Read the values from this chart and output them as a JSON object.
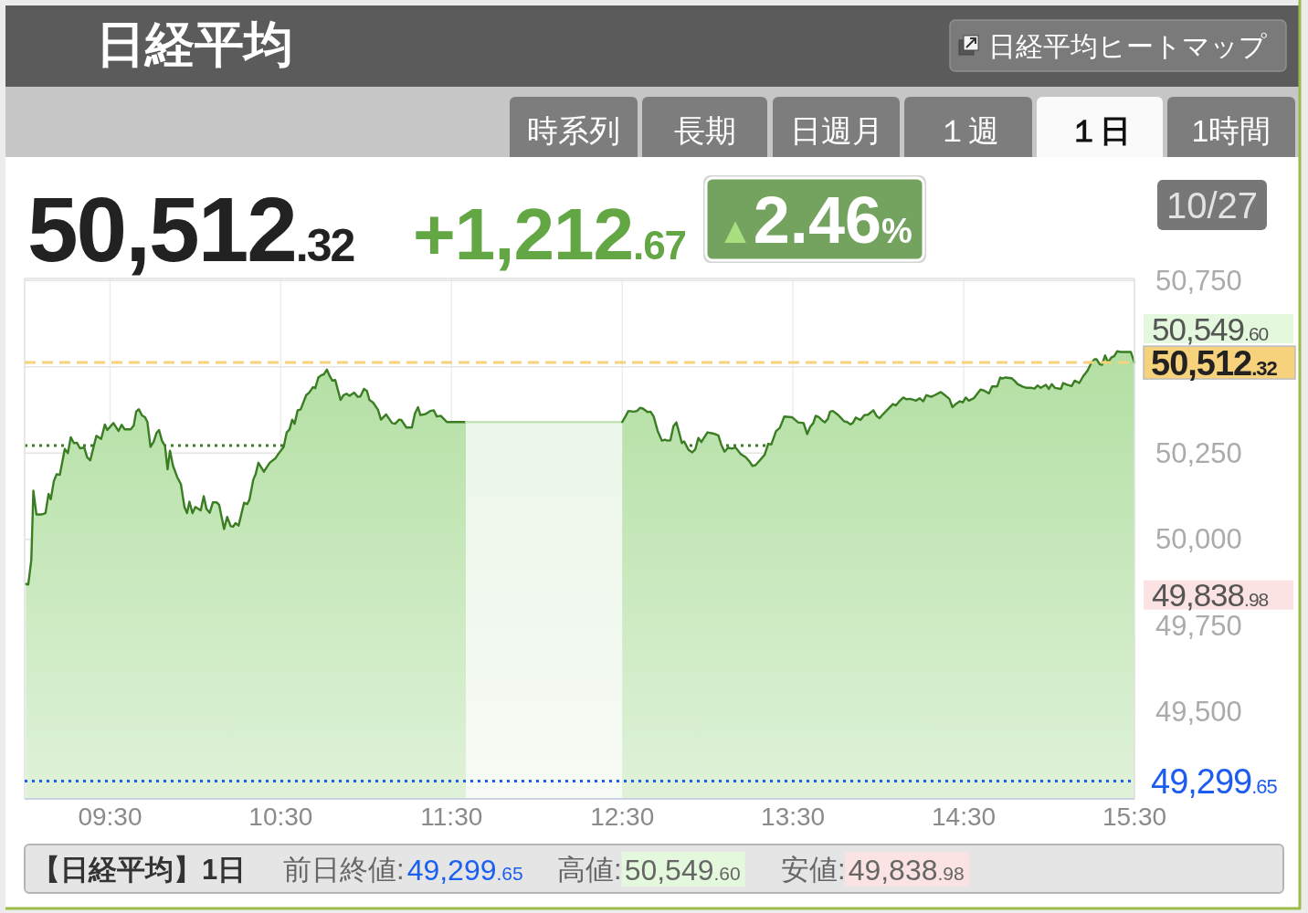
{
  "chart_data": {
    "type": "area",
    "title": "日経平均",
    "xlim": [
      9,
      15.5
    ],
    "xticks": [
      {
        "value": 9.5,
        "label": "09:30"
      },
      {
        "value": 10.5,
        "label": "10:30"
      },
      {
        "value": 11.5,
        "label": "11:30"
      },
      {
        "value": 12.5,
        "label": "12:30"
      },
      {
        "value": 13.5,
        "label": "13:30"
      },
      {
        "value": 14.5,
        "label": "14:30"
      },
      {
        "value": 15.5,
        "label": "15:30"
      }
    ],
    "ylim": [
      49248,
      50756
    ],
    "yticks": [
      {
        "value": 49500,
        "label": "49,500"
      },
      {
        "value": 49750,
        "label": "49,750"
      },
      {
        "value": 50000,
        "label": "50,000"
      },
      {
        "value": 50250,
        "label": "50,250"
      },
      {
        "value": 50500,
        "label": null
      },
      {
        "value": 50750,
        "label": "50,750"
      }
    ],
    "grid": true,
    "series": [
      {
        "color": "#3a7d22",
        "x": [
          9.007,
          9.021,
          9.039,
          9.051,
          9.069,
          9.096,
          9.122,
          9.14,
          9.153,
          9.171,
          9.188,
          9.206,
          9.235,
          9.253,
          9.27,
          9.288,
          9.306,
          9.324,
          9.349,
          9.366,
          9.384,
          9.42,
          9.448,
          9.47,
          9.484,
          9.52,
          9.55,
          9.568,
          9.585,
          9.621,
          9.639,
          9.653,
          9.669,
          9.687,
          9.705,
          9.719,
          9.737,
          9.755,
          9.773,
          9.787,
          9.804,
          9.822,
          9.837,
          9.851,
          9.869,
          9.894,
          9.915,
          9.936,
          9.951,
          9.965,
          9.983,
          10.0,
          10.031,
          10.049,
          10.065,
          10.084,
          10.102,
          10.125,
          10.139,
          10.168,
          10.186,
          10.207,
          10.221,
          10.235,
          10.253,
          10.285,
          10.303,
          10.316,
          10.339,
          10.353,
          10.369,
          10.401,
          10.435,
          10.467,
          10.485,
          10.517,
          10.535,
          10.552,
          10.567,
          10.581,
          10.599,
          10.616,
          10.649,
          10.666,
          10.688,
          10.702,
          10.72,
          10.738,
          10.752,
          10.77,
          10.787,
          10.802,
          10.819,
          10.85,
          10.868,
          10.885,
          10.903,
          10.93,
          10.951,
          10.966,
          10.987,
          11.005,
          11.019,
          11.04,
          11.069,
          11.087,
          11.117,
          11.152,
          11.17,
          11.193,
          11.206,
          11.236,
          11.268,
          11.286,
          11.304,
          11.318,
          11.348,
          11.375,
          11.396,
          11.414,
          11.437,
          11.473,
          11.585
        ],
        "values": [
          49871,
          49869,
          49940,
          50141,
          50072,
          50072,
          50076,
          50132,
          50116,
          50169,
          50189,
          50187,
          50262,
          50250,
          50296,
          50279,
          50280,
          50264,
          50266,
          50238,
          50229,
          50300,
          50291,
          50333,
          50317,
          50337,
          50314,
          50332,
          50319,
          50319,
          50330,
          50370,
          50377,
          50359,
          50354,
          50340,
          50268,
          50282,
          50309,
          50317,
          50286,
          50270,
          50203,
          50257,
          50213,
          50180,
          50160,
          50094,
          50076,
          50109,
          50076,
          50094,
          50084,
          50125,
          50088,
          50077,
          50107,
          50107,
          50100,
          50030,
          50065,
          50038,
          50037,
          50047,
          50040,
          50106,
          50102,
          50114,
          50173,
          50189,
          50222,
          50196,
          50222,
          50234,
          50247,
          50268,
          50310,
          50319,
          50347,
          50335,
          50374,
          50376,
          50418,
          50425,
          50441,
          50438,
          50469,
          50476,
          50478,
          50492,
          50473,
          50460,
          50462,
          50404,
          50418,
          50422,
          50416,
          50425,
          50413,
          50414,
          50436,
          50430,
          50404,
          50397,
          50376,
          50347,
          50362,
          50337,
          50335,
          50347,
          50346,
          50324,
          50324,
          50365,
          50383,
          50360,
          50363,
          50372,
          50374,
          50356,
          50358,
          50340,
          50340
        ]
      },
      {
        "color": "#c3e6b8",
        "x": [
          11.585,
          12.5
        ],
        "values": [
          50340,
          50340
        ]
      },
      {
        "color": "#3a7d22",
        "x": [
          12.5,
          12.515,
          12.536,
          12.568,
          12.586,
          12.604,
          12.621,
          12.648,
          12.666,
          12.684,
          12.707,
          12.732,
          12.75,
          12.764,
          12.782,
          12.8,
          12.817,
          12.835,
          12.849,
          12.862,
          12.889,
          12.91,
          12.928,
          12.946,
          12.963,
          12.999,
          13.031,
          13.063,
          13.081,
          13.099,
          13.12,
          13.141,
          13.164,
          13.195,
          13.223,
          13.245,
          13.262,
          13.28,
          13.302,
          13.334,
          13.355,
          13.373,
          13.401,
          13.423,
          13.449,
          13.494,
          13.53,
          13.562,
          13.583,
          13.601,
          13.619,
          13.633,
          13.651,
          13.668,
          13.686,
          13.704,
          13.717,
          13.734,
          13.761,
          13.779,
          13.8,
          13.818,
          13.836,
          13.85,
          13.868,
          13.895,
          13.918,
          13.939,
          13.971,
          13.989,
          14.007,
          14.028,
          14.046,
          14.085,
          14.103,
          14.121,
          14.146,
          14.163,
          14.188,
          14.221,
          14.242,
          14.263,
          14.281,
          14.31,
          14.331,
          14.366,
          14.384,
          14.416,
          14.434,
          14.456,
          14.477,
          14.495,
          14.512,
          14.53,
          14.559,
          14.598,
          14.616,
          14.648,
          14.666,
          14.696,
          14.714,
          14.726,
          14.744,
          14.78,
          14.797,
          14.815,
          14.844,
          14.869,
          14.897,
          14.915,
          14.933,
          14.951,
          14.981,
          14.999,
          15.016,
          15.034,
          15.07,
          15.082,
          15.105,
          15.132,
          15.15,
          15.177,
          15.2,
          15.225,
          15.248,
          15.266,
          15.278,
          15.296,
          15.31,
          15.328,
          15.346,
          15.364,
          15.381,
          15.399,
          15.417,
          15.479,
          15.5
        ],
        "values": [
          50340,
          50353,
          50372,
          50370,
          50372,
          50381,
          50379,
          50369,
          50370,
          50356,
          50315,
          50286,
          50289,
          50286,
          50287,
          50328,
          50339,
          50306,
          50279,
          50284,
          50259,
          50252,
          50261,
          50294,
          50282,
          50310,
          50307,
          50301,
          50273,
          50254,
          50266,
          50263,
          50266,
          50247,
          50238,
          50226,
          50213,
          50215,
          50227,
          50245,
          50277,
          50275,
          50314,
          50323,
          50356,
          50354,
          50339,
          50337,
          50305,
          50326,
          50337,
          50358,
          50354,
          50346,
          50339,
          50349,
          50370,
          50372,
          50362,
          50353,
          50342,
          50340,
          50333,
          50337,
          50353,
          50346,
          50360,
          50361,
          50374,
          50358,
          50351,
          50363,
          50372,
          50392,
          50388,
          50399,
          50411,
          50406,
          50407,
          50402,
          50409,
          50400,
          50418,
          50413,
          50418,
          50427,
          50420,
          50407,
          50383,
          50393,
          50400,
          50397,
          50411,
          50402,
          50409,
          50434,
          50432,
          50423,
          50443,
          50443,
          50469,
          50466,
          50469,
          50467,
          50460,
          50450,
          50443,
          50439,
          50439,
          50437,
          50446,
          50439,
          50448,
          50436,
          50450,
          50439,
          50436,
          50453,
          50448,
          50444,
          50460,
          50453,
          50473,
          50489,
          50512,
          50522,
          50522,
          50508,
          50506,
          50533,
          50512,
          50527,
          50531,
          50545,
          50543,
          50543,
          50512
        ]
      }
    ],
    "ref_lines": [
      {
        "axis": "y",
        "value": 50272,
        "color": "#3a7d22",
        "line_style": "dotted"
      },
      {
        "axis": "y",
        "value": 50512.32,
        "label": "50,512.32",
        "color": "#f7d27c",
        "line_style": "dashed"
      },
      {
        "axis": "y",
        "value": 49299.65,
        "label": "49,299.65",
        "color": "#1d5cf0",
        "line_style": "dotted"
      }
    ],
    "annotations": [
      "10/27",
      "50,512.32",
      "+1,212.67",
      "▲2.46%",
      "日経平均ヒートマップ",
      "時系列",
      "長期",
      "日週月",
      "１週",
      "１日",
      "1時間",
      "【日経平均】1日",
      "前日終値:49,299.65",
      "高値:50,549.60",
      "安値:49,838.98",
      {
        "text": "50,549.60",
        "x": 15.5,
        "y": 50549.6
      },
      {
        "text": "49,838.98",
        "x": 15.5,
        "y": 49838.98
      }
    ]
  }
}
